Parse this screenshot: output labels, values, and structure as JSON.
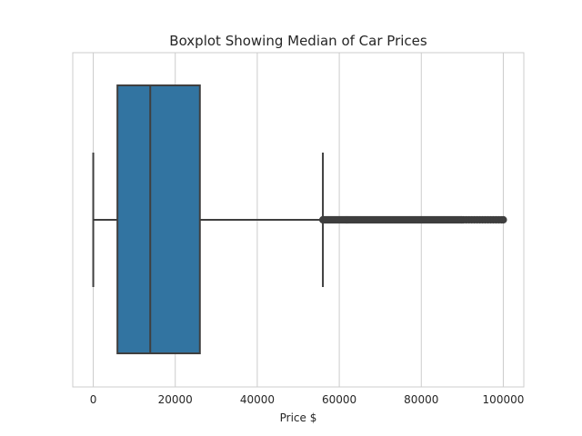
{
  "chart_data": {
    "type": "box",
    "title": "Boxplot Showing Median of Car Prices",
    "xlabel": "Price $",
    "ylabel": "",
    "xlim": [
      -5000,
      105000
    ],
    "xticks": [
      0,
      20000,
      40000,
      60000,
      80000,
      100000
    ],
    "xtick_labels": [
      "0",
      "20000",
      "40000",
      "60000",
      "80000",
      "100000"
    ],
    "grid": "vertical",
    "colors": {
      "box_fill": "#3274a1",
      "line": "#3f3f3f",
      "grid": "#cccccc"
    },
    "box": {
      "whisker_low": 0,
      "q1": 5900,
      "median": 13900,
      "q3": 26000,
      "whisker_high": 56000
    },
    "outliers": {
      "min": 56000,
      "max": 100000,
      "note_dense_until": 90000
    }
  }
}
